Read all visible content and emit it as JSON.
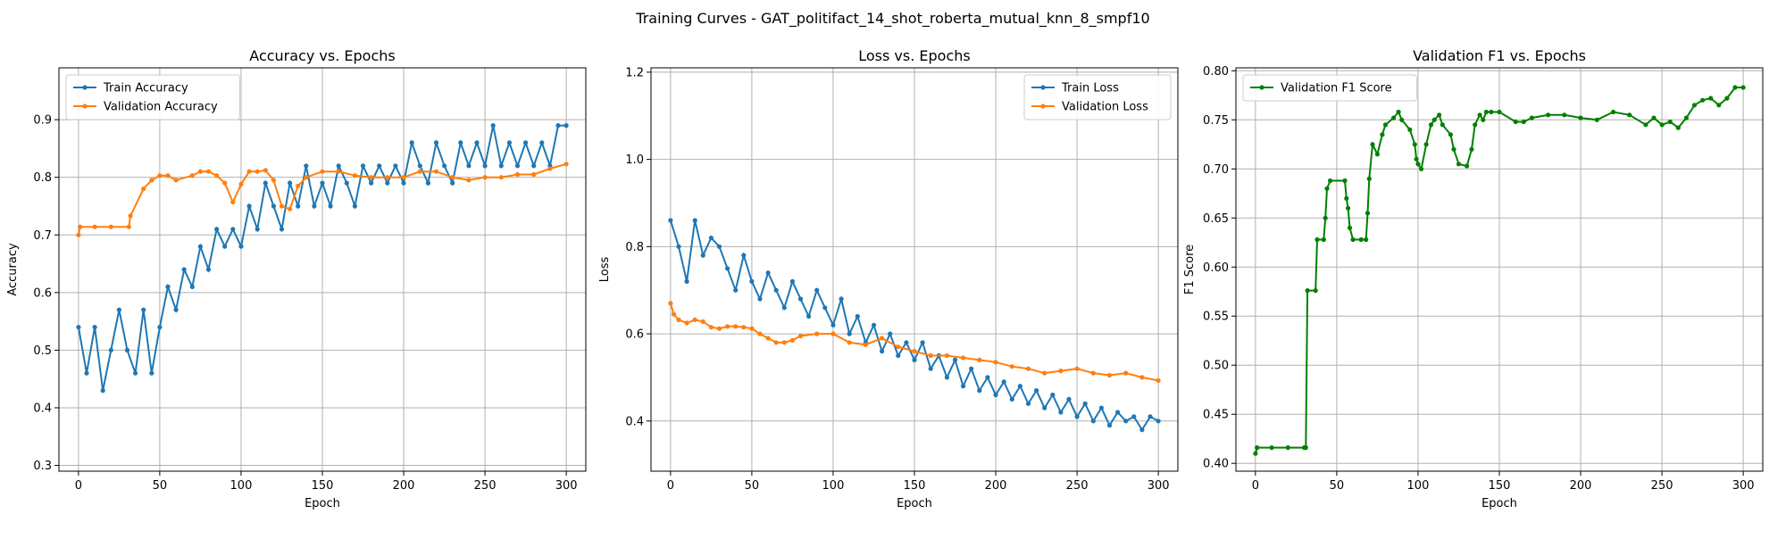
{
  "suptitle": "Training Curves - GAT_politifact_14_shot_roberta_mutual_knn_8_smpf10",
  "chart_data": [
    {
      "type": "line",
      "title": "Accuracy vs. Epochs",
      "xlabel": "Epoch",
      "ylabel": "Accuracy",
      "xlim": [
        -12,
        312
      ],
      "ylim": [
        0.29,
        0.99
      ],
      "xticks": [
        0,
        50,
        100,
        150,
        200,
        250,
        300
      ],
      "yticks": [
        0.3,
        0.4,
        0.5,
        0.6,
        0.7,
        0.8,
        0.9
      ],
      "grid": true,
      "legend_position": "top-left",
      "series": [
        {
          "name": "Train Accuracy",
          "color": "#1f77b4",
          "x": [
            0,
            5,
            10,
            15,
            20,
            25,
            30,
            35,
            40,
            45,
            50,
            55,
            60,
            65,
            70,
            75,
            80,
            85,
            90,
            95,
            100,
            105,
            110,
            115,
            120,
            125,
            130,
            135,
            140,
            145,
            150,
            155,
            160,
            165,
            170,
            175,
            180,
            185,
            190,
            195,
            200,
            205,
            210,
            215,
            220,
            225,
            230,
            235,
            240,
            245,
            250,
            255,
            260,
            265,
            270,
            275,
            280,
            285,
            290,
            295,
            300
          ],
          "y": [
            0.54,
            0.46,
            0.54,
            0.43,
            0.5,
            0.57,
            0.5,
            0.46,
            0.57,
            0.46,
            0.54,
            0.61,
            0.57,
            0.64,
            0.61,
            0.68,
            0.64,
            0.71,
            0.68,
            0.71,
            0.68,
            0.75,
            0.71,
            0.79,
            0.75,
            0.71,
            0.79,
            0.75,
            0.82,
            0.75,
            0.79,
            0.75,
            0.82,
            0.79,
            0.75,
            0.82,
            0.79,
            0.82,
            0.79,
            0.82,
            0.79,
            0.86,
            0.82,
            0.79,
            0.86,
            0.82,
            0.79,
            0.86,
            0.82,
            0.86,
            0.82,
            0.89,
            0.82,
            0.86,
            0.82,
            0.86,
            0.82,
            0.86,
            0.82,
            0.89,
            0.89
          ]
        },
        {
          "name": "Validation Accuracy",
          "color": "#ff7f0e",
          "x": [
            0,
            1,
            10,
            20,
            31,
            32,
            40,
            45,
            50,
            55,
            60,
            70,
            75,
            80,
            85,
            90,
            95,
            100,
            105,
            110,
            115,
            120,
            125,
            130,
            135,
            140,
            150,
            160,
            170,
            180,
            190,
            200,
            210,
            220,
            230,
            240,
            250,
            260,
            270,
            280,
            290,
            300
          ],
          "y": [
            0.7,
            0.714,
            0.714,
            0.714,
            0.714,
            0.733,
            0.78,
            0.795,
            0.803,
            0.803,
            0.795,
            0.803,
            0.81,
            0.81,
            0.803,
            0.79,
            0.757,
            0.788,
            0.81,
            0.81,
            0.812,
            0.795,
            0.75,
            0.745,
            0.785,
            0.8,
            0.81,
            0.81,
            0.803,
            0.8,
            0.8,
            0.8,
            0.81,
            0.81,
            0.8,
            0.795,
            0.8,
            0.8,
            0.805,
            0.805,
            0.815,
            0.823
          ]
        }
      ]
    },
    {
      "type": "line",
      "title": "Loss vs. Epochs",
      "xlabel": "Epoch",
      "ylabel": "Loss",
      "xlim": [
        -12,
        312
      ],
      "ylim": [
        0.285,
        1.21
      ],
      "xticks": [
        0,
        50,
        100,
        150,
        200,
        250,
        300
      ],
      "yticks": [
        0.4,
        0.6,
        0.8,
        1.0,
        1.2
      ],
      "grid": true,
      "legend_position": "top-right",
      "series": [
        {
          "name": "Train Loss",
          "color": "#1f77b4",
          "x": [
            0,
            5,
            10,
            15,
            20,
            25,
            30,
            35,
            40,
            45,
            50,
            55,
            60,
            65,
            70,
            75,
            80,
            85,
            90,
            95,
            100,
            105,
            110,
            115,
            120,
            125,
            130,
            135,
            140,
            145,
            150,
            155,
            160,
            165,
            170,
            175,
            180,
            185,
            190,
            195,
            200,
            205,
            210,
            215,
            220,
            225,
            230,
            235,
            240,
            245,
            250,
            255,
            260,
            265,
            270,
            275,
            280,
            285,
            290,
            295,
            300
          ],
          "y": [
            0.86,
            0.8,
            0.72,
            0.86,
            0.78,
            0.82,
            0.8,
            0.75,
            0.7,
            0.78,
            0.72,
            0.68,
            0.74,
            0.7,
            0.66,
            0.72,
            0.68,
            0.64,
            0.7,
            0.66,
            0.62,
            0.68,
            0.6,
            0.64,
            0.58,
            0.62,
            0.56,
            0.6,
            0.55,
            0.58,
            0.54,
            0.58,
            0.52,
            0.55,
            0.5,
            0.54,
            0.48,
            0.52,
            0.47,
            0.5,
            0.46,
            0.49,
            0.45,
            0.48,
            0.44,
            0.47,
            0.43,
            0.46,
            0.42,
            0.45,
            0.41,
            0.44,
            0.4,
            0.43,
            0.39,
            0.42,
            0.4,
            0.41,
            0.38,
            0.41,
            0.4
          ]
        },
        {
          "name": "Validation Loss",
          "color": "#ff7f0e",
          "x": [
            0,
            2,
            5,
            10,
            15,
            20,
            25,
            30,
            35,
            40,
            45,
            50,
            55,
            60,
            65,
            70,
            75,
            80,
            90,
            100,
            110,
            120,
            130,
            140,
            150,
            160,
            170,
            180,
            190,
            200,
            210,
            220,
            230,
            240,
            250,
            260,
            270,
            280,
            290,
            300
          ],
          "y": [
            0.67,
            0.645,
            0.632,
            0.625,
            0.632,
            0.628,
            0.615,
            0.612,
            0.617,
            0.617,
            0.615,
            0.612,
            0.6,
            0.59,
            0.58,
            0.58,
            0.585,
            0.595,
            0.6,
            0.6,
            0.58,
            0.575,
            0.59,
            0.57,
            0.56,
            0.55,
            0.55,
            0.545,
            0.54,
            0.535,
            0.525,
            0.52,
            0.51,
            0.515,
            0.52,
            0.51,
            0.505,
            0.51,
            0.5,
            0.493
          ]
        }
      ]
    },
    {
      "type": "line",
      "title": "Validation F1 vs. Epochs",
      "xlabel": "Epoch",
      "ylabel": "F1 Score",
      "xlim": [
        -12,
        312
      ],
      "ylim": [
        0.392,
        0.803
      ],
      "xticks": [
        0,
        50,
        100,
        150,
        200,
        250,
        300
      ],
      "yticks": [
        0.4,
        0.45,
        0.5,
        0.55,
        0.6,
        0.65,
        0.7,
        0.75,
        0.8
      ],
      "grid": true,
      "legend_position": "top-left",
      "series": [
        {
          "name": "Validation F1 Score",
          "color": "#008000",
          "x": [
            0,
            1,
            10,
            20,
            30,
            31,
            32,
            37,
            38,
            42,
            43,
            44,
            46,
            55,
            56,
            57,
            58,
            60,
            65,
            68,
            69,
            70,
            72,
            75,
            78,
            80,
            85,
            88,
            90,
            95,
            98,
            99,
            100,
            102,
            105,
            108,
            110,
            113,
            115,
            120,
            122,
            125,
            130,
            133,
            135,
            138,
            140,
            142,
            145,
            150,
            160,
            165,
            170,
            180,
            190,
            200,
            210,
            220,
            230,
            240,
            245,
            250,
            255,
            260,
            265,
            270,
            275,
            280,
            285,
            290,
            295,
            300
          ],
          "y": [
            0.41,
            0.416,
            0.416,
            0.416,
            0.416,
            0.416,
            0.576,
            0.576,
            0.628,
            0.628,
            0.65,
            0.68,
            0.688,
            0.688,
            0.67,
            0.66,
            0.64,
            0.628,
            0.628,
            0.628,
            0.655,
            0.69,
            0.725,
            0.715,
            0.735,
            0.745,
            0.752,
            0.758,
            0.75,
            0.74,
            0.725,
            0.71,
            0.705,
            0.7,
            0.725,
            0.745,
            0.75,
            0.755,
            0.745,
            0.735,
            0.72,
            0.705,
            0.703,
            0.72,
            0.745,
            0.755,
            0.75,
            0.758,
            0.758,
            0.758,
            0.748,
            0.748,
            0.752,
            0.755,
            0.755,
            0.752,
            0.75,
            0.758,
            0.755,
            0.745,
            0.752,
            0.745,
            0.748,
            0.742,
            0.752,
            0.765,
            0.77,
            0.772,
            0.765,
            0.772,
            0.783,
            0.783
          ]
        }
      ]
    }
  ]
}
